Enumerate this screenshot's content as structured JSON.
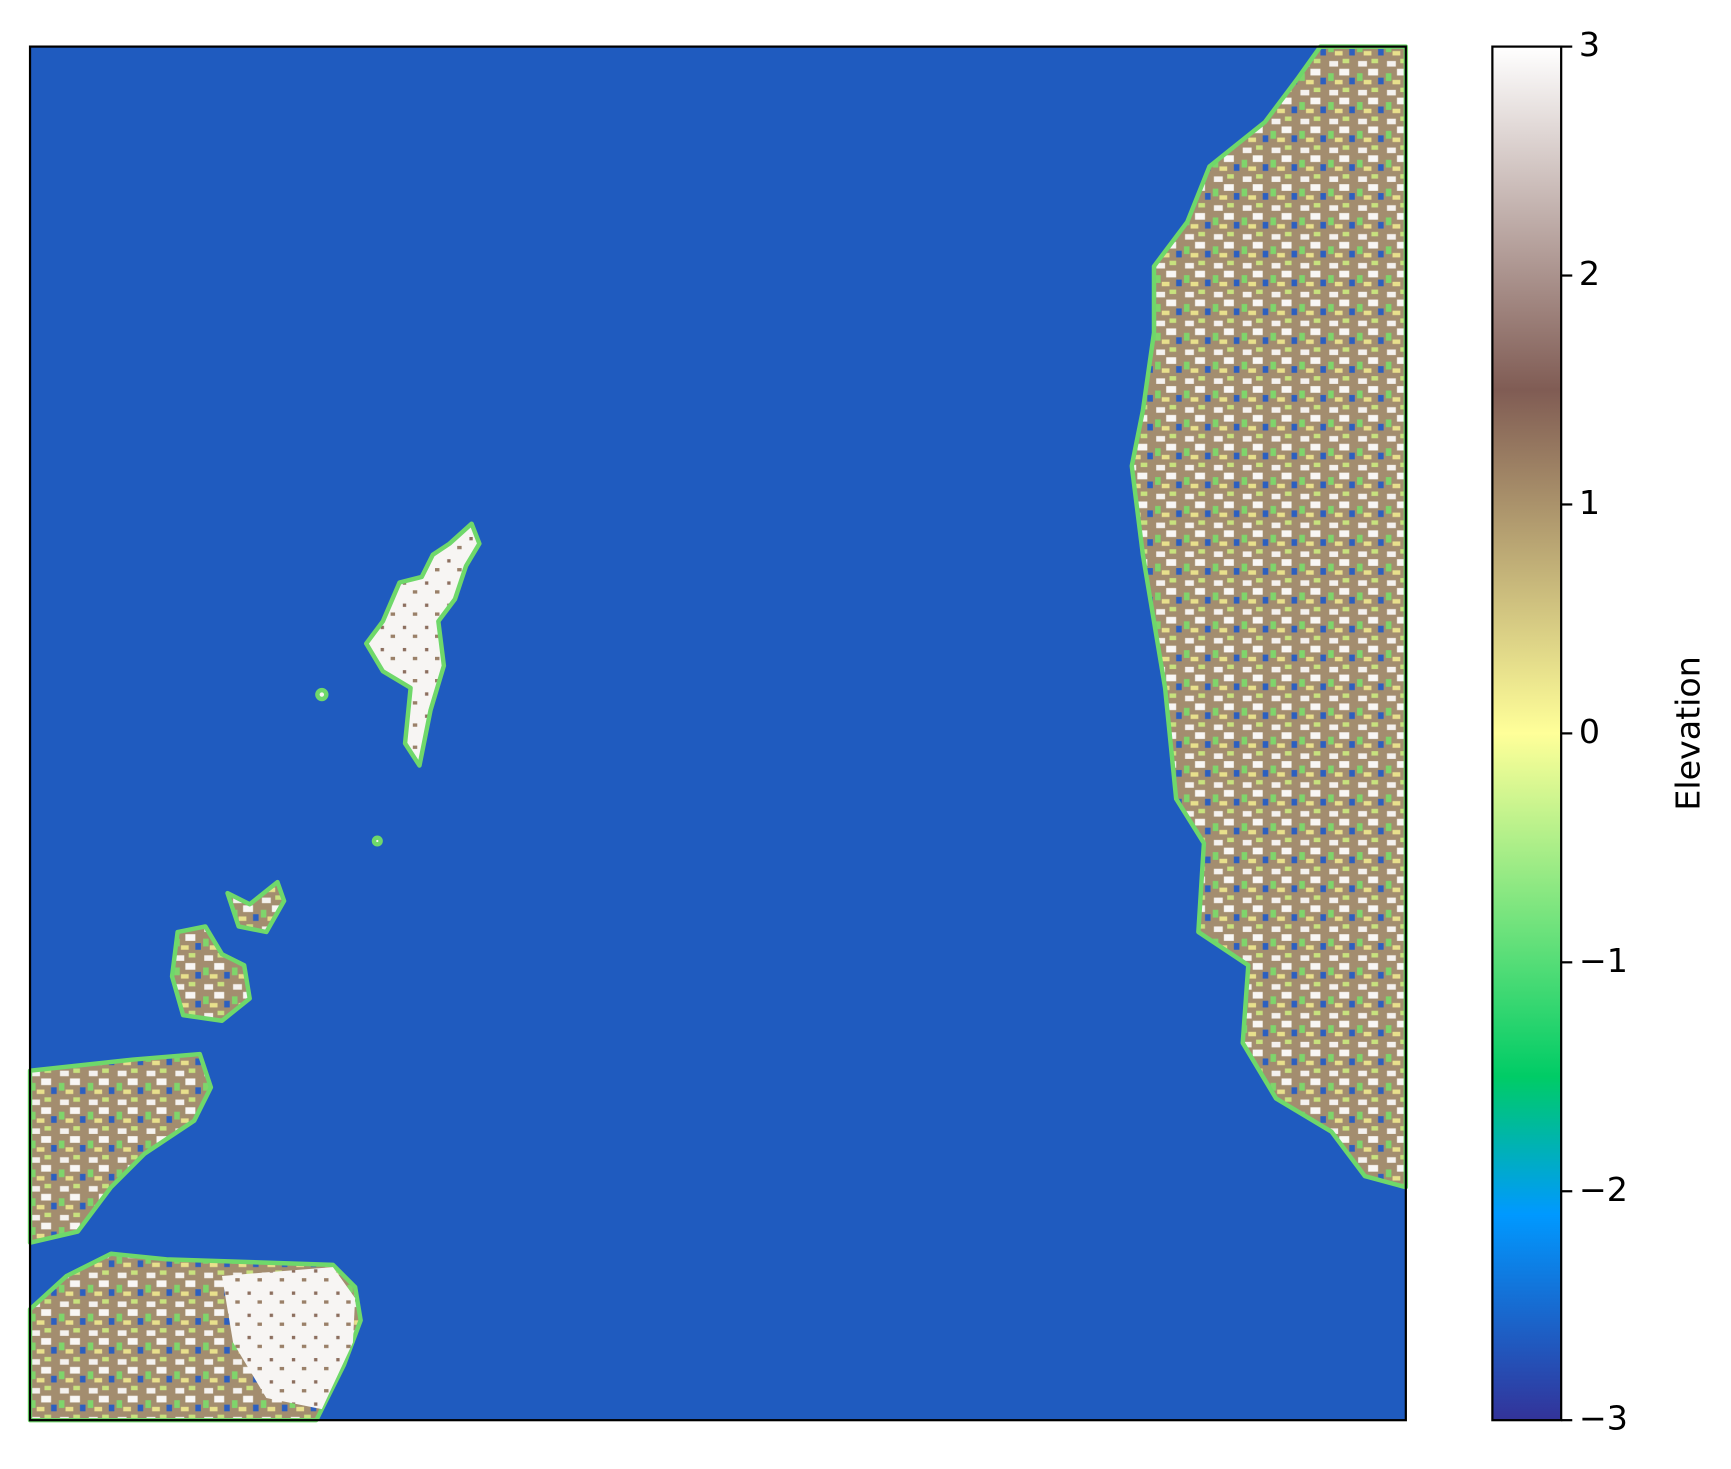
{
  "chart_data": {
    "type": "raster-map",
    "colormap": "terrain",
    "colorbar_label": "Elevation",
    "clim": [
      -3,
      3
    ],
    "cticks": [
      {
        "value": -3,
        "label": "−3"
      },
      {
        "value": -2,
        "label": "−2"
      },
      {
        "value": -1,
        "label": "−1"
      },
      0,
      1,
      2,
      3
    ]
  }
}
